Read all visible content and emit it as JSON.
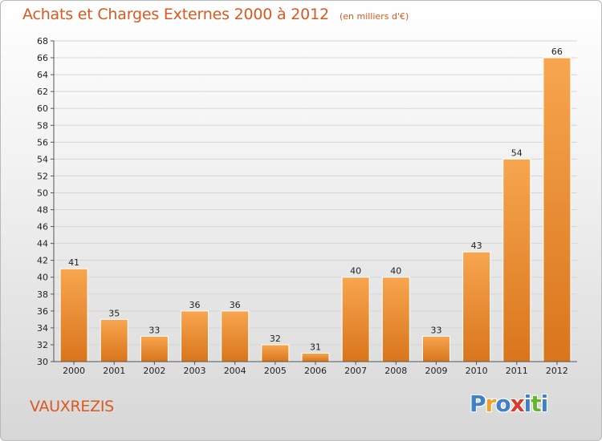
{
  "title": "Achats et Charges Externes 2000 à 2012",
  "unit": "(en milliers d'€)",
  "commune": "VAUXREZIS",
  "logo": {
    "letters": [
      "P",
      "r",
      "o",
      "x",
      "i",
      "t",
      "i"
    ],
    "colors": [
      "#3f80c9",
      "#f0a028",
      "#3f80c9",
      "#d93a2b",
      "#3f80c9",
      "#66b52e",
      "#3f80c9"
    ]
  },
  "colors": {
    "title": "#d9591f",
    "bar_light": "#f7a64f",
    "bar_dark": "#d9751c",
    "grid": "#d5d5d5"
  },
  "chart_data": {
    "type": "bar",
    "categories": [
      "2000",
      "2001",
      "2002",
      "2003",
      "2004",
      "2005",
      "2006",
      "2007",
      "2008",
      "2009",
      "2010",
      "2011",
      "2012"
    ],
    "values": [
      41,
      35,
      33,
      36,
      36,
      32,
      31,
      40,
      40,
      33,
      43,
      54,
      66
    ],
    "ylim": [
      30,
      68
    ],
    "yticks": [
      30,
      32,
      34,
      36,
      38,
      40,
      42,
      44,
      46,
      48,
      50,
      52,
      54,
      56,
      58,
      60,
      62,
      64,
      66,
      68
    ],
    "grid": true,
    "legend": "none"
  }
}
